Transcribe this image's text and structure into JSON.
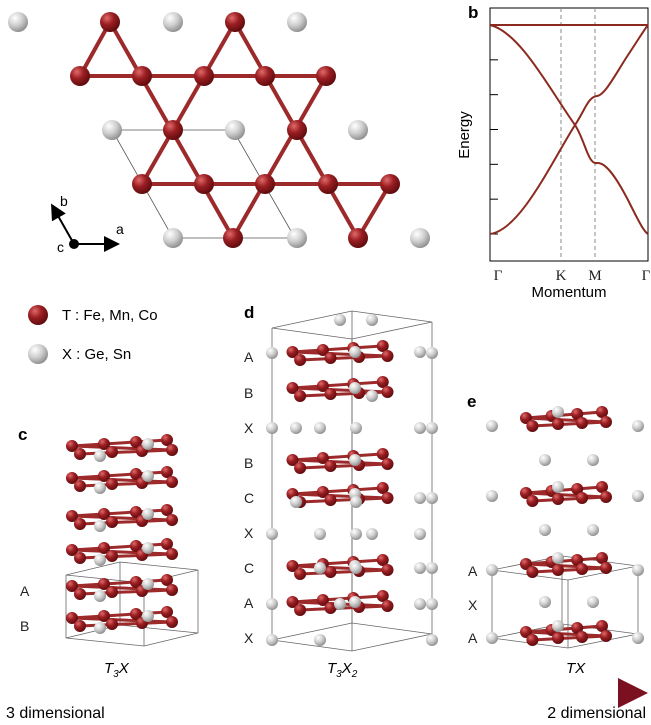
{
  "panels": {
    "a": "a",
    "b": "b",
    "c": "c",
    "d": "d",
    "e": "e"
  },
  "axes_a": {
    "a": "a",
    "b": "b",
    "c": "c"
  },
  "legend": {
    "t_label": "T : Fe, Mn, Co",
    "x_label": "X : Ge, Sn"
  },
  "colors": {
    "T_atom": "#8e1a1f",
    "bond": "#9c2a2a",
    "X_atom": "#c8c8c8",
    "band": "#8b2a1e",
    "arrow": "#7a1020"
  },
  "chart_data": {
    "type": "line",
    "xlabel": "Momentum",
    "ylabel": "Energy",
    "x_ticks": [
      "Γ",
      "K",
      "M",
      "Γ"
    ],
    "y_ticks": 7
  },
  "structures": {
    "c": {
      "formula_main": "T",
      "formula_sub": "3",
      "formula_x": "X",
      "layers": [
        "A",
        "B"
      ]
    },
    "d": {
      "formula_main": "T",
      "formula_sub": "3",
      "formula_x": "X",
      "formula_sub2": "2",
      "layers": [
        "A",
        "B",
        "X",
        "B",
        "C",
        "X",
        "C",
        "A",
        "X"
      ]
    },
    "e": {
      "formula_main": "TX",
      "layers": [
        "A",
        "X",
        "A"
      ]
    }
  },
  "dimension_arrow": {
    "left": "3 dimensional",
    "right": "2 dimensional"
  }
}
